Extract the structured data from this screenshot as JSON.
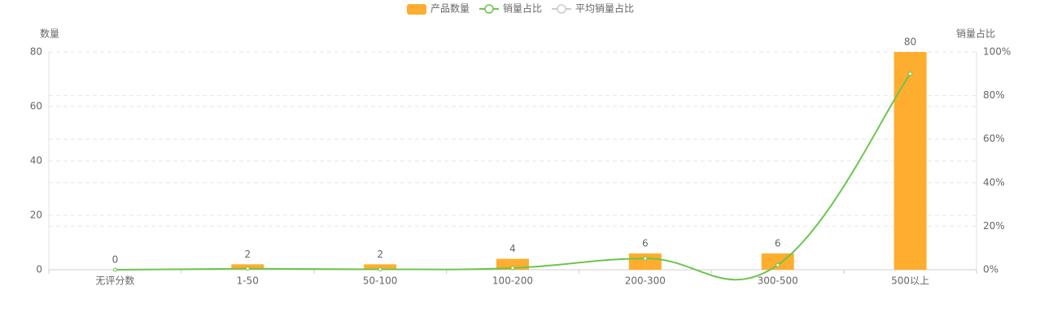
{
  "chart_data": {
    "type": "bar",
    "categories": [
      "无评分数",
      "1-50",
      "50-100",
      "100-200",
      "200-300",
      "300-500",
      "500以上"
    ],
    "series": [
      {
        "name": "产品数量",
        "type": "bar",
        "color": "#ffad2e",
        "values": [
          0,
          2,
          2,
          4,
          6,
          6,
          80
        ]
      },
      {
        "name": "销量占比",
        "type": "line",
        "axis": "y2",
        "color": "#6cc54f",
        "values": [
          0,
          0.5,
          0.2,
          0.8,
          5.2,
          2.2,
          90
        ]
      },
      {
        "name": "平均销量占比",
        "type": "line",
        "axis": "y2",
        "color": "#cccccc",
        "hidden": true
      }
    ],
    "ylabel": "数量",
    "y2label": "销量占比",
    "ylim": [
      0,
      80
    ],
    "yticks": [
      0,
      20,
      40,
      60,
      80
    ],
    "y2lim": [
      0,
      100
    ],
    "y2ticks": [
      {
        "value": 0,
        "label": "0%"
      },
      {
        "value": 20,
        "label": "20%"
      },
      {
        "value": 40,
        "label": "40%"
      },
      {
        "value": 60,
        "label": "60%"
      },
      {
        "value": 80,
        "label": "80%"
      },
      {
        "value": 100,
        "label": "100%"
      }
    ],
    "grid": true,
    "legend": "top"
  }
}
